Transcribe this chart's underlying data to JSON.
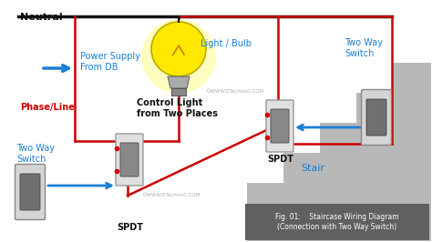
{
  "bg_color": "#ffffff",
  "title_box_color": "#606060",
  "title_text": "Fig. 01:    Staircase Wiring Diagram\n(Connection with Two Way Switch)",
  "neutral_label": "Neutral",
  "phase_label": "Phase/Line",
  "power_label": "Power Supply\nFrom DB",
  "light_label": "Light / Bulb",
  "control_label": "Control Light\nfrom Two Places",
  "stair_label": "Stair",
  "two_way_top_label": "Two Way\nSwitch",
  "spdt_top_label": "SPDT",
  "two_way_bot_label": "Two Way\nSwitch",
  "spdt_bot_label": "SPDT",
  "wire_red": "#cc0000",
  "wire_black": "#111111",
  "blue": "#1a7fd4",
  "red_label": "#cc0000",
  "black_label": "#111111",
  "stair_color": "#b8b8b8",
  "stair_edge": "#ffffff",
  "watermark": "©WWW.ETechnoG.COM",
  "bulb_yellow": "#ffe800",
  "bulb_base": "#999999",
  "switch_face": "#e0e0e0",
  "switch_toggle": "#888888"
}
